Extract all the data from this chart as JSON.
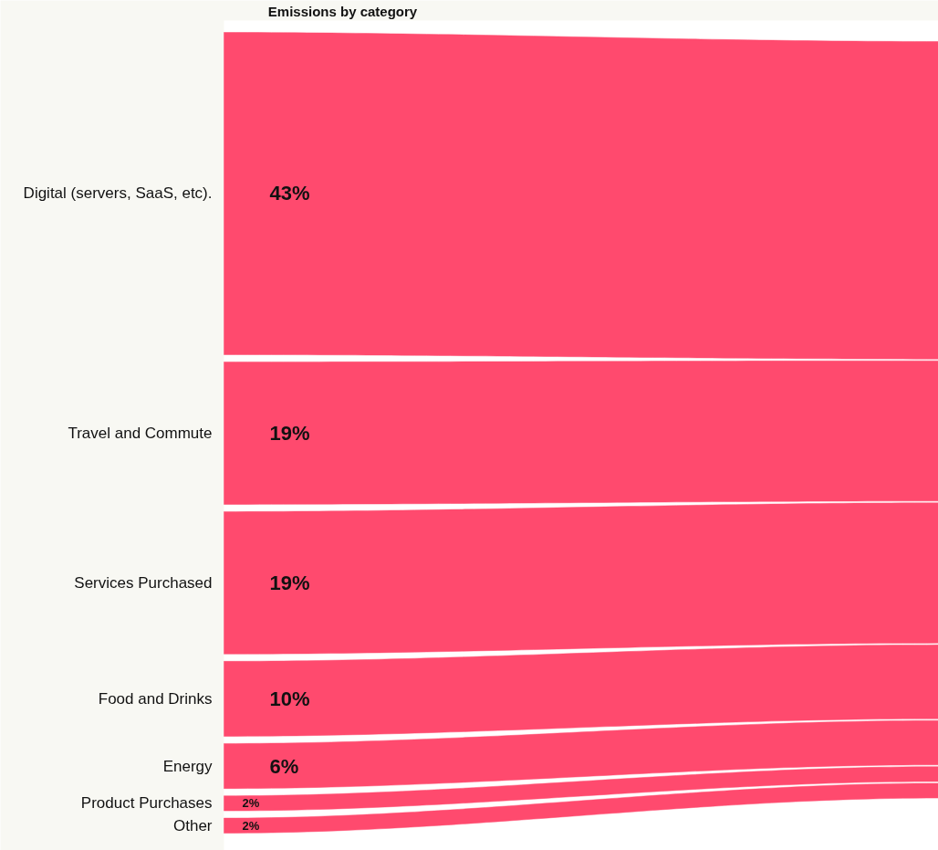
{
  "chart_data": {
    "type": "other",
    "title": "Emissions by category",
    "categories": [
      "Digital (servers, SaaS, etc).",
      "Travel and Commute",
      "Services Purchased",
      "Food and Drinks",
      "Energy",
      "Product Purchases",
      "Other"
    ],
    "values": [
      43,
      19,
      19,
      10,
      6,
      2,
      2
    ],
    "value_labels": [
      "43%",
      "19%",
      "19%",
      "10%",
      "6%",
      "2%",
      "2%"
    ],
    "colors": [
      "#ff4a6e",
      "#ff4a6e",
      "#ff4a6e",
      "#ff4a6e",
      "#ff4a6e",
      "#ff4a6e",
      "#ff4a6e"
    ]
  }
}
